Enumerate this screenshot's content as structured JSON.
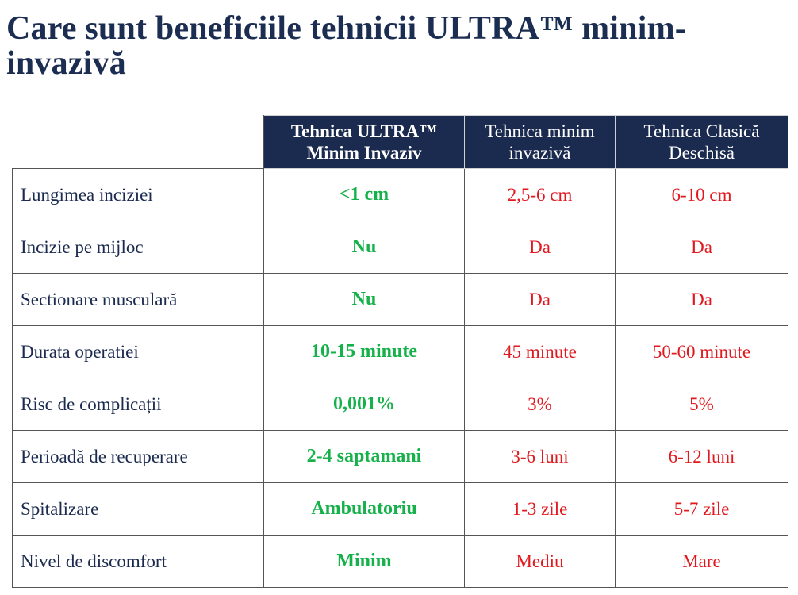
{
  "title": "Care sunt beneficiile tehnicii ULTRA™ minim-invazivă",
  "table": {
    "headers": [
      {
        "line1": "Tehnica ULTRA™",
        "line2": "Minim Invaziv"
      },
      {
        "line1": "Tehnica minim",
        "line2": "invazivă"
      },
      {
        "line1": "Tehnica Clasică",
        "line2": "Deschisă"
      }
    ],
    "rows": [
      {
        "label": "Lungimea inciziei",
        "ultra": "<1 cm",
        "minim": "2,5-6 cm",
        "clasica": "6-10 cm"
      },
      {
        "label": "Incizie pe mijloc",
        "ultra": "Nu",
        "minim": "Da",
        "clasica": "Da"
      },
      {
        "label": "Sectionare musculară",
        "ultra": "Nu",
        "minim": "Da",
        "clasica": "Da"
      },
      {
        "label": "Durata operatiei",
        "ultra": "10-15 minute",
        "minim": "45 minute",
        "clasica": "50-60 minute"
      },
      {
        "label": "Risc de complicații",
        "ultra": "0,001%",
        "minim": "3%",
        "clasica": "5%"
      },
      {
        "label": "Perioadă de recuperare",
        "ultra": "2-4 saptamani",
        "minim": "3-6 luni",
        "clasica": "6-12 luni"
      },
      {
        "label": "Spitalizare",
        "ultra": "Ambulatoriu",
        "minim": "1-3 zile",
        "clasica": "5-7 zile"
      },
      {
        "label": "Nivel de discomfort",
        "ultra": "Minim",
        "minim": "Mediu",
        "clasica": "Mare"
      }
    ]
  },
  "colors": {
    "title": "#1c2d52",
    "header_bg": "#1b2a4f",
    "ultra_green": "#16b14a",
    "other_red": "#e0191f"
  }
}
